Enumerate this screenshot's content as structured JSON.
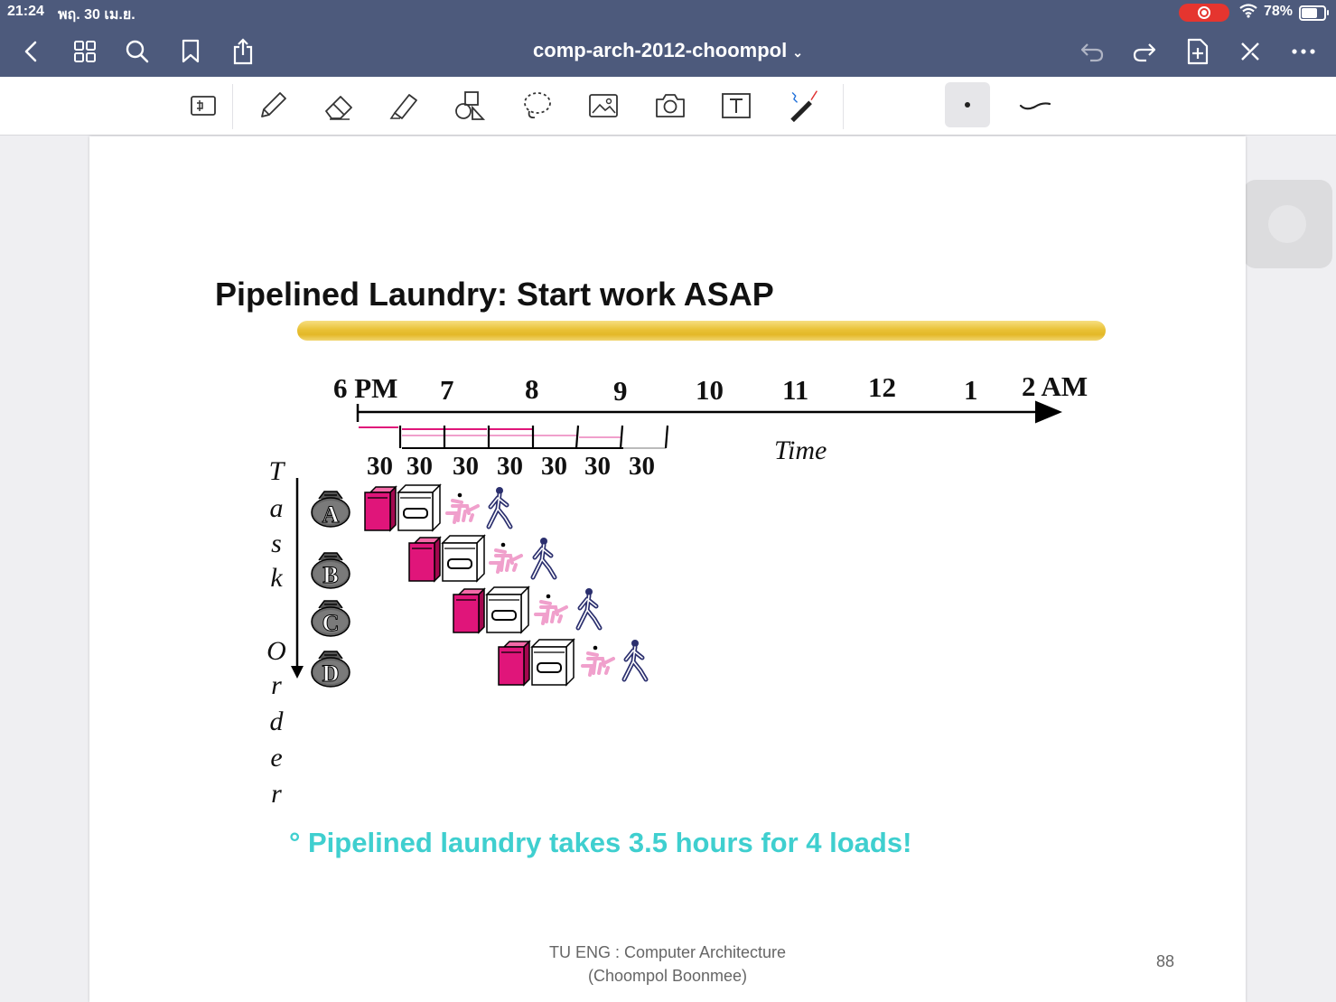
{
  "status": {
    "time": "21:24",
    "date": "พฤ. 30 เม.ย.",
    "battery_text": "78%",
    "battery_level": 0.78
  },
  "nav": {
    "title": "comp-arch-2012-choompol",
    "title_chevron": "⌄"
  },
  "slide": {
    "title": "Pipelined Laundry: Start work ASAP",
    "time_labels": [
      "6 PM",
      "7",
      "8",
      "9",
      "10",
      "11",
      "12",
      "1",
      "2 AM"
    ],
    "stage_minutes": [
      "30",
      "30",
      "30",
      "30",
      "30",
      "30",
      "30"
    ],
    "time_axis_label": "Time",
    "task_order_letters": [
      "T",
      "a",
      "s",
      "k",
      "O",
      "r",
      "d",
      "e",
      "r"
    ],
    "tasks": [
      "A",
      "B",
      "C",
      "D"
    ],
    "bullet": "° Pipelined laundry takes 3.5 hours for 4 loads!",
    "footer_line1": "TU ENG : Computer Architecture",
    "footer_line2": "(Choompol Boonmee)",
    "page_number": "88"
  },
  "colors": {
    "bar": "#4d5a7c",
    "washer": "#e0157a",
    "folder": "#f0a0cc",
    "walker": "#2b2f6e",
    "bullet": "#3fcfcf",
    "highlight": "#e8be2b"
  }
}
